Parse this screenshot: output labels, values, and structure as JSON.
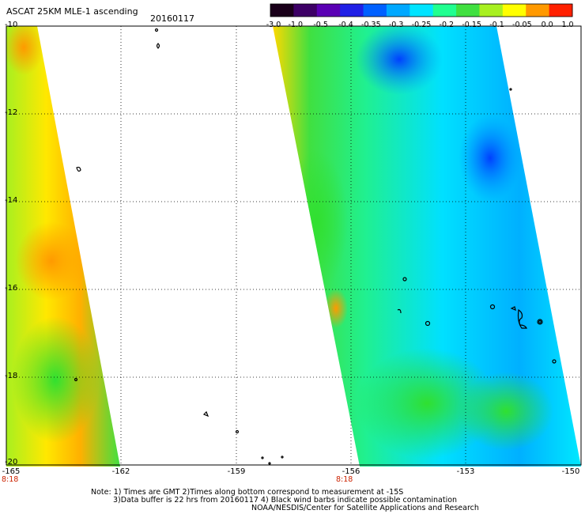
{
  "header": {
    "title": "ASCAT 25KM MLE-1 ascending",
    "date": "20160117"
  },
  "colorbar": {
    "labels": [
      "-3.0",
      "-1.0",
      "-0.5",
      "-0.4",
      "-0.35",
      "-0.3",
      "-0.25",
      "-0.2",
      "-0.15",
      "-0.1",
      "-0.05",
      "0.0",
      "1.0"
    ],
    "colors": [
      "#1a001a",
      "#3d0066",
      "#5a00b4",
      "#2020e6",
      "#0060ff",
      "#00a8ff",
      "#00e4ff",
      "#20ff90",
      "#40e040",
      "#a8f020",
      "#ffff00",
      "#ff9900",
      "#ff2000"
    ]
  },
  "axes": {
    "lat_labels": [
      "-10",
      "-12",
      "-14",
      "-16",
      "-18",
      "-20"
    ],
    "lon_labels": [
      "-165",
      "-162",
      "-159",
      "-156",
      "-153",
      "-150"
    ]
  },
  "time_labels": [
    "8:18",
    "8:18"
  ],
  "notes": [
    "Note: 1) Times are GMT 2)Times along bottom correspond to measurement at -15S",
    "3)Data buffer is 22 hrs from 20160117 4) Black wind barbs indicate possible contamination",
    "NOAA/NESDIS/Center for Satellite Applications and Research"
  ]
}
